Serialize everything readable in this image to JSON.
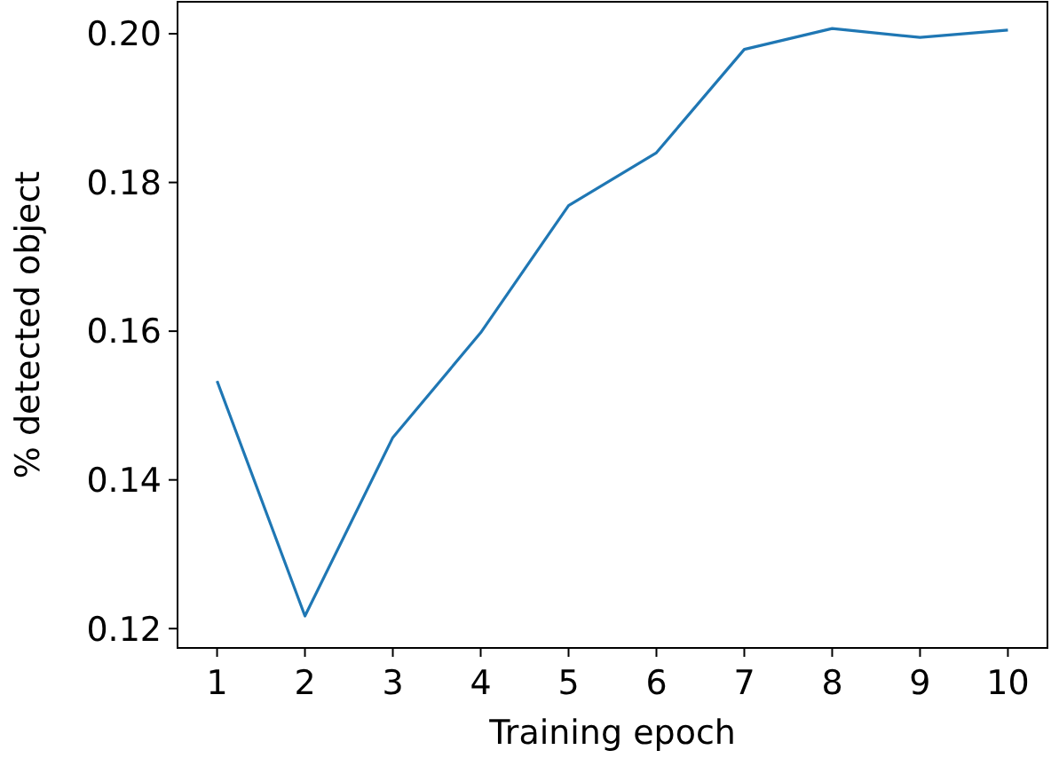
{
  "chart_data": {
    "type": "line",
    "xlabel": "Training epoch",
    "ylabel": "% detected object",
    "x": [
      1,
      2,
      3,
      4,
      5,
      6,
      7,
      8,
      9,
      10
    ],
    "series": [
      {
        "color": "#1f77b4",
        "values": [
          0.1533,
          0.1217,
          0.1457,
          0.1598,
          0.1769,
          0.184,
          0.1979,
          0.2007,
          0.1995,
          0.2005
        ]
      }
    ],
    "xlim": [
      0.55,
      10.45
    ],
    "xticks": [
      1,
      2,
      3,
      4,
      5,
      6,
      7,
      8,
      9,
      10
    ],
    "ylim": [
      0.1174,
      0.2043
    ],
    "yticks": [
      {
        "value": 0.12,
        "label": "0.12"
      },
      {
        "value": 0.14,
        "label": "0.14"
      },
      {
        "value": 0.16,
        "label": "0.16"
      },
      {
        "value": 0.18,
        "label": "0.18"
      },
      {
        "value": 0.2,
        "label": "0.20"
      }
    ],
    "grid": false,
    "marker": "none",
    "line_style": "solid"
  }
}
